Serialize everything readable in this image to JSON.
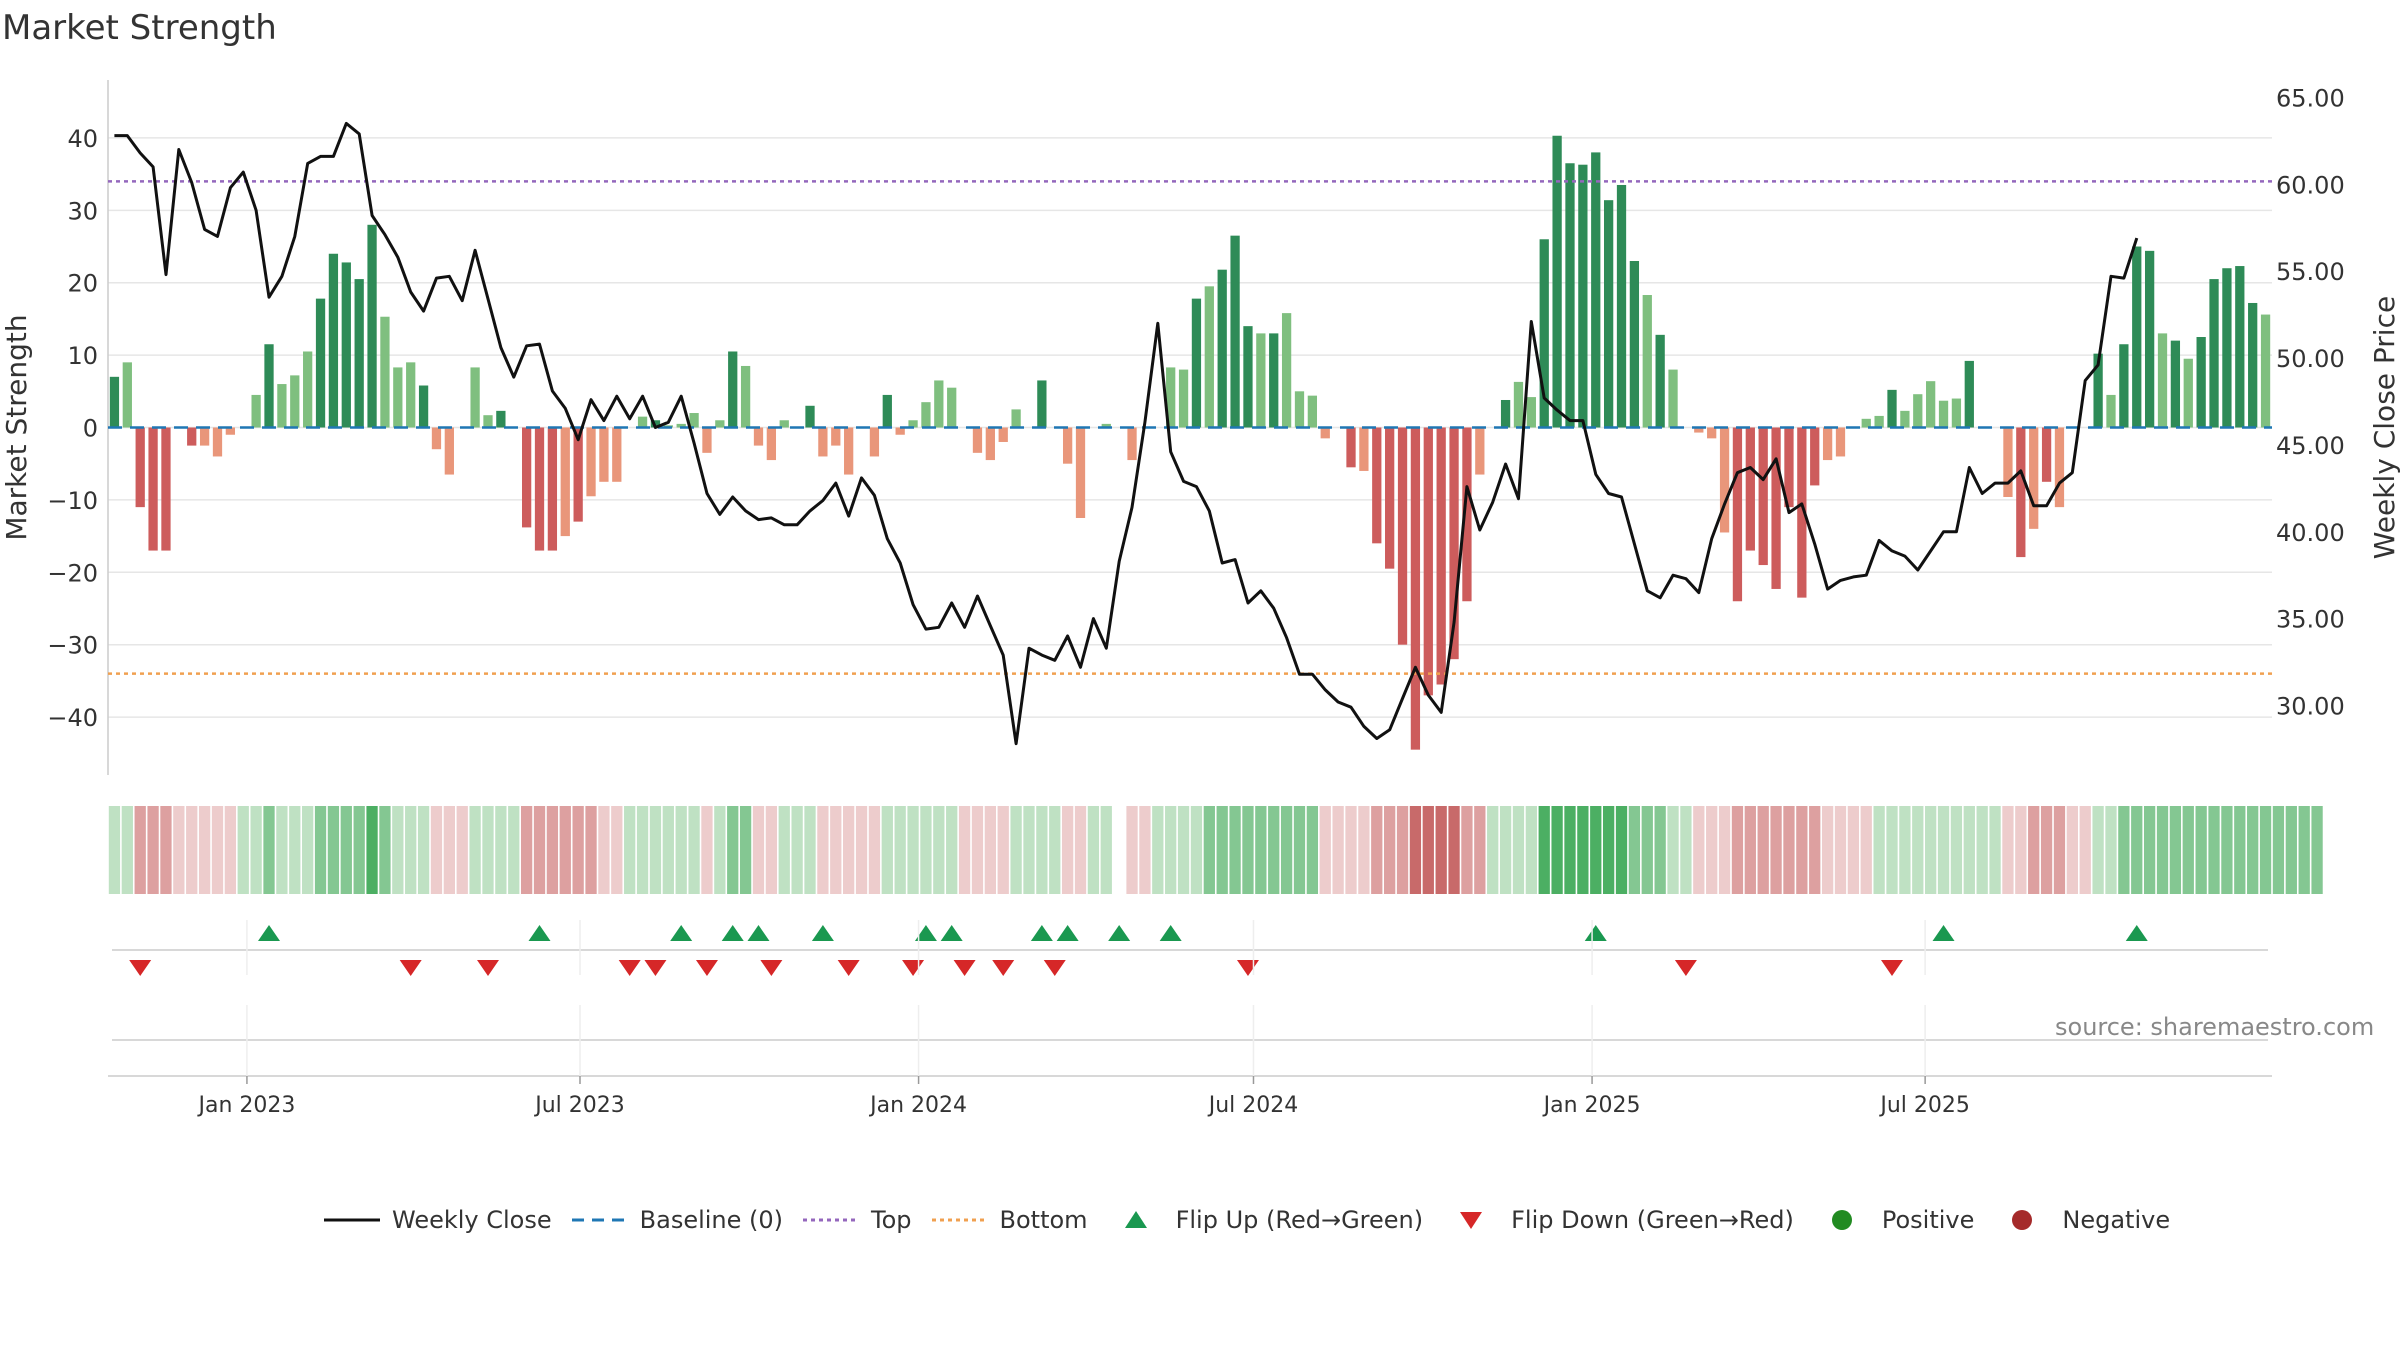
{
  "title": "Market Strength",
  "source": "source: sharemaestro.com",
  "colors": {
    "close_line": "#111111",
    "baseline": "#1f77b4",
    "top_line": "#9467bd",
    "bottom_line": "#f0a050",
    "pos_strong": "#2e8b57",
    "pos_light": "#7fbf7f",
    "neg_strong": "#cd5c5c",
    "neg_light": "#e9967a",
    "flip_up": "#1a9850",
    "flip_down": "#d62728",
    "positive_dot": "#228b22",
    "negative_dot": "#a52a2a",
    "grid": "#e6e6e6"
  },
  "legend": [
    {
      "label": "Weekly Close",
      "kind": "line-solid",
      "color": "#111111"
    },
    {
      "label": "Baseline (0)",
      "kind": "line-dash",
      "color": "#1f77b4"
    },
    {
      "label": "Top",
      "kind": "line-dot",
      "color": "#9467bd"
    },
    {
      "label": "Bottom",
      "kind": "line-dot",
      "color": "#f0a050"
    },
    {
      "label": "Flip Up (Red→Green)",
      "kind": "tri-up",
      "color": "#1a9850"
    },
    {
      "label": "Flip Down (Green→Red)",
      "kind": "tri-down",
      "color": "#d62728"
    },
    {
      "label": "Positive",
      "kind": "dot",
      "color": "#228b22"
    },
    {
      "label": "Negative",
      "kind": "dot",
      "color": "#a52a2a"
    }
  ],
  "chart_data": {
    "type": "bar",
    "ylabel": "Market Strength",
    "y2label": "Weekly Close Price",
    "ylim": [
      -48,
      48
    ],
    "y2lim": [
      26,
      66
    ],
    "yticks": [
      "40",
      "30",
      "20",
      "10",
      "0",
      "−10",
      "−20",
      "−30",
      "−40"
    ],
    "y2ticks": [
      "65.00",
      "60.00",
      "55.00",
      "50.00",
      "45.00",
      "40.00",
      "35.00",
      "30.00"
    ],
    "x_start": "2022-10-21",
    "x_step_days": 7,
    "xticks": [
      {
        "label": "Jan 2023",
        "date": "2023-01-01"
      },
      {
        "label": "Jul 2023",
        "date": "2023-07-01"
      },
      {
        "label": "Jan 2024",
        "date": "2024-01-01"
      },
      {
        "label": "Jul 2024",
        "date": "2024-07-01"
      },
      {
        "label": "Jan 2025",
        "date": "2025-01-01"
      },
      {
        "label": "Jul 2025",
        "date": "2025-07-01"
      }
    ],
    "top_level": 34,
    "bottom_level": -34,
    "baseline": 0,
    "strength": [
      7,
      9,
      -11,
      -17,
      -17,
      0,
      -2.5,
      -2.5,
      -4,
      -1,
      0,
      4.5,
      11.5,
      6,
      7.2,
      10.5,
      17.8,
      24,
      22.8,
      20.5,
      28,
      15.3,
      8.3,
      9,
      5.8,
      -3,
      -6.5,
      0,
      8.3,
      1.7,
      2.3,
      0,
      -13.8,
      -17,
      -17,
      -15,
      -13,
      -9.5,
      -7.5,
      -7.5,
      0,
      1.5,
      1,
      0.3,
      0.5,
      2,
      -3.5,
      1,
      10.5,
      8.5,
      -2.5,
      -4.5,
      1,
      0,
      3,
      -4,
      -2.5,
      -6.5,
      0,
      -4,
      4.5,
      -1,
      1,
      3.5,
      6.5,
      5.5,
      0,
      -3.5,
      -4.5,
      -2,
      2.5,
      0,
      6.5,
      0,
      -5,
      -12.5,
      0,
      0.5,
      0,
      -4.5,
      0,
      0,
      8.3,
      8,
      17.8,
      19.5,
      21.8,
      26.5,
      14,
      13,
      13,
      15.8,
      5,
      4.4,
      -1.5,
      0,
      -5.5,
      -6,
      -16,
      -19.5,
      -30,
      -44.5,
      -37,
      -35.5,
      -32,
      -24,
      -6.5,
      0,
      3.8,
      6.3,
      4.2,
      26,
      40.3,
      36.5,
      36.3,
      38,
      31.4,
      33.5,
      23,
      18.3,
      12.8,
      8,
      0,
      -0.7,
      -1.5,
      -14.5,
      -24,
      -17,
      -19,
      -22.3,
      -11,
      -23.5,
      -8,
      -4.5,
      -4,
      0,
      1.2,
      1.6,
      5.2,
      2.3,
      4.6,
      6.4,
      3.7,
      4,
      9.2,
      0,
      0,
      -9.6,
      -17.9,
      -14,
      -7.5,
      -11,
      0,
      0,
      10.2,
      4.5,
      11.5,
      25,
      24.4,
      13,
      12,
      9.5,
      12.5,
      20.5,
      22,
      22.3,
      17.2,
      15.6
    ],
    "close": [
      62.8,
      62.8,
      61.8,
      61,
      54.8,
      62,
      60.1,
      57.4,
      57,
      59.8,
      60.7,
      58.5,
      53.5,
      54.7,
      57,
      61.2,
      61.6,
      61.6,
      63.5,
      62.9,
      58.2,
      57.1,
      55.8,
      53.8,
      52.7,
      54.6,
      54.7,
      53.3,
      56.2,
      53.4,
      50.6,
      48.9,
      50.7,
      50.8,
      48.1,
      47.1,
      45.3,
      47.6,
      46.4,
      47.8,
      46.5,
      47.8,
      46,
      46.3,
      47.8,
      45.1,
      42.2,
      41,
      42,
      41.2,
      40.7,
      40.8,
      40.4,
      40.4,
      41.2,
      41.8,
      42.8,
      40.9,
      43.1,
      42.1,
      39.6,
      38.2,
      35.8,
      34.4,
      34.5,
      35.9,
      34.5,
      36.3,
      34.6,
      32.9,
      27.8,
      33.3,
      32.9,
      32.6,
      34,
      32.2,
      35,
      33.3,
      38.3,
      41.4,
      46.3,
      52,
      44.6,
      42.9,
      42.6,
      41.2,
      38.2,
      38.4,
      35.9,
      36.6,
      35.6,
      33.9,
      31.8,
      31.8,
      30.9,
      30.2,
      29.9,
      28.8,
      28.1,
      28.6,
      30.4,
      32.2,
      30.6,
      29.6,
      34.8,
      42.6,
      40.1,
      41.7,
      43.9,
      41.9,
      52.1,
      47.7,
      47,
      46.4,
      46.4,
      43.3,
      42.2,
      42,
      39.3,
      36.6,
      36.2,
      37.5,
      37.3,
      36.5,
      39.6,
      41.6,
      43.4,
      43.7,
      43,
      44.2,
      41.1,
      41.6,
      39.3,
      36.7,
      37.2,
      37.4,
      37.5,
      39.5,
      38.9,
      38.6,
      37.8,
      38.9,
      40,
      40,
      43.7,
      42.2,
      42.8,
      42.8,
      43.5,
      41.5,
      41.5,
      42.8,
      43.4,
      48.7,
      49.6,
      54.7,
      54.6,
      56.9
    ],
    "heat_levels": [
      1,
      1,
      -2,
      -2,
      -2,
      -1,
      -1,
      -1,
      -1,
      -1,
      1,
      1,
      2,
      1,
      1,
      1,
      2,
      2,
      2,
      2,
      3,
      2,
      1,
      1,
      1,
      -1,
      -1,
      -1,
      1,
      1,
      1,
      1,
      -2,
      -2,
      -2,
      -2,
      -2,
      -2,
      -1,
      -1,
      1,
      1,
      1,
      1,
      1,
      1,
      -1,
      1,
      2,
      2,
      -1,
      -1,
      1,
      1,
      1,
      -1,
      -1,
      -1,
      -1,
      -1,
      1,
      1,
      1,
      1,
      1,
      1,
      -1,
      -1,
      -1,
      -1,
      1,
      1,
      1,
      1,
      -1,
      -1,
      1,
      1,
      0,
      -1,
      -1,
      1,
      1,
      1,
      1,
      2,
      2,
      2,
      2,
      2,
      2,
      2,
      2,
      2,
      -1,
      -1,
      -1,
      -1,
      -2,
      -2,
      -2,
      -3,
      -3,
      -3,
      -3,
      -2,
      -2,
      1,
      1,
      1,
      1,
      3,
      3,
      3,
      3,
      3,
      3,
      3,
      2,
      2,
      2,
      1,
      1,
      -1,
      -1,
      -1,
      -2,
      -2,
      -2,
      -2,
      -2,
      -2,
      -2,
      -1,
      -1,
      -1,
      -1,
      1,
      1,
      1,
      1,
      1,
      1,
      1,
      1,
      1,
      1,
      -1,
      -1,
      -2,
      -2,
      -2,
      -1,
      -1,
      1,
      1,
      2,
      2,
      2,
      2,
      2,
      2,
      2,
      2,
      2,
      2,
      2,
      2,
      2,
      2,
      2,
      2
    ],
    "flip_up_weeks": [
      12,
      33,
      44,
      48,
      50,
      55,
      63,
      65,
      72,
      74,
      78,
      82,
      115,
      142,
      157
    ],
    "flip_down_weeks": [
      2,
      23,
      29,
      40,
      42,
      46,
      51,
      57,
      62,
      66,
      69,
      73,
      88,
      122,
      138
    ]
  }
}
